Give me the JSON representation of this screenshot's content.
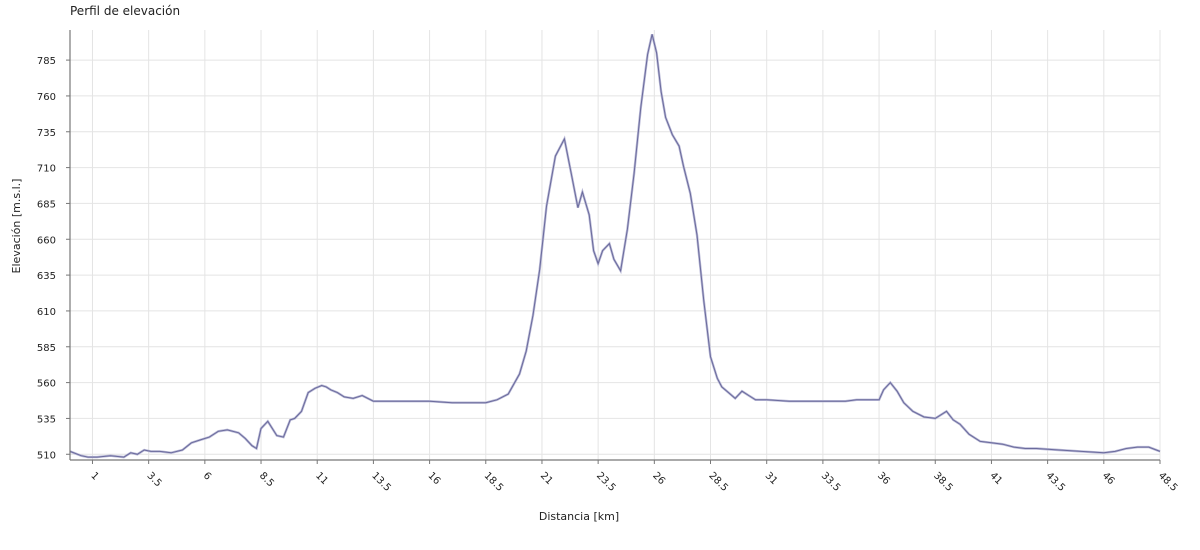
{
  "colors": {
    "line": "#6a6a9c",
    "shadow": "#b9b9d6",
    "grid": "#e4e4e4",
    "axis": "#777777"
  },
  "chart_data": {
    "type": "line",
    "title": "Perfil de elevación",
    "xlabel": "Distancia [km]",
    "ylabel": "Elevación [m.s.l.]",
    "xlim": [
      0,
      48.5
    ],
    "ylim": [
      506,
      806
    ],
    "x_ticks": [
      "1",
      "3.5",
      "6",
      "8.5",
      "11",
      "13.5",
      "16",
      "18.5",
      "21",
      "23.5",
      "26",
      "28.5",
      "31",
      "33.5",
      "36",
      "38.5",
      "41",
      "43.5",
      "46",
      "48.5"
    ],
    "y_ticks": [
      "510",
      "535",
      "560",
      "585",
      "610",
      "635",
      "660",
      "685",
      "710",
      "735",
      "760",
      "785"
    ],
    "grid": true,
    "legend": "none",
    "series": [
      {
        "x": [
          0,
          0.5,
          0.8,
          1.2,
          1.8,
          2.4,
          2.7,
          3.0,
          3.3,
          3.6,
          4.0,
          4.5,
          5.0,
          5.4,
          5.8,
          6.2,
          6.6,
          7.0,
          7.5,
          7.8,
          8.1,
          8.3,
          8.5,
          8.8,
          9.2,
          9.5,
          9.8,
          10.0,
          10.3,
          10.6,
          10.9,
          11.2,
          11.4,
          11.6,
          11.9,
          12.2,
          12.6,
          13.0,
          13.5,
          14.0,
          15.0,
          16.0,
          17.0,
          18.0,
          18.5,
          19.0,
          19.5,
          20.0,
          20.3,
          20.6,
          20.9,
          21.2,
          21.6,
          22.0,
          22.3,
          22.6,
          22.8,
          23.1,
          23.3,
          23.5,
          23.7,
          24.0,
          24.2,
          24.5,
          24.8,
          25.1,
          25.4,
          25.7,
          25.9,
          26.1,
          26.3,
          26.5,
          26.8,
          27.1,
          27.3,
          27.6,
          27.9,
          28.2,
          28.5,
          28.8,
          29.0,
          29.3,
          29.6,
          29.9,
          30.2,
          30.5,
          31.0,
          32.0,
          33.0,
          34.0,
          34.5,
          35.0,
          35.5,
          36.0,
          36.2,
          36.5,
          36.8,
          37.1,
          37.5,
          38.0,
          38.5,
          39.0,
          39.3,
          39.6,
          40.0,
          40.5,
          41.0,
          41.5,
          42.0,
          42.5,
          43.0,
          44.0,
          45.0,
          46.0,
          46.5,
          47.0,
          47.5,
          48.0,
          48.5
        ],
        "y": [
          512,
          509,
          508,
          508,
          509,
          508,
          511,
          510,
          513,
          512,
          512,
          511,
          513,
          518,
          520,
          522,
          526,
          527,
          525,
          521,
          516,
          514,
          528,
          533,
          523,
          522,
          534,
          535,
          540,
          553,
          556,
          558,
          557,
          555,
          553,
          550,
          549,
          551,
          547,
          547,
          547,
          547,
          546,
          546,
          546,
          548,
          552,
          566,
          582,
          607,
          639,
          683,
          718,
          730,
          706,
          682,
          693,
          677,
          652,
          643,
          652,
          657,
          646,
          638,
          667,
          706,
          752,
          789,
          803,
          790,
          763,
          745,
          733,
          725,
          711,
          692,
          663,
          617,
          578,
          563,
          557,
          553,
          549,
          554,
          551,
          548,
          548,
          547,
          547,
          547,
          547,
          548,
          548,
          548,
          555,
          560,
          554,
          546,
          540,
          536,
          535,
          540,
          534,
          531,
          524,
          519,
          518,
          517,
          515,
          514,
          514,
          513,
          512,
          511,
          512,
          514,
          515,
          515,
          512
        ]
      }
    ]
  }
}
